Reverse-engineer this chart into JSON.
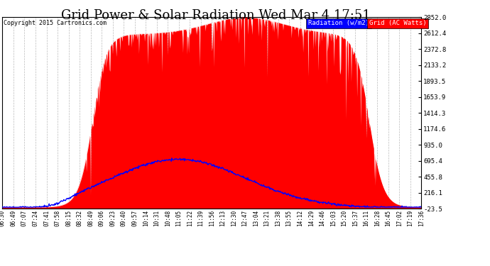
{
  "title": "Grid Power & Solar Radiation Wed Mar 4 17:51",
  "copyright": "Copyright 2015 Cartronics.com",
  "legend_radiation": "Radiation (w/m2)",
  "legend_grid": "Grid (AC Watts)",
  "yticks": [
    -23.5,
    216.1,
    455.8,
    695.4,
    935.0,
    1174.6,
    1414.3,
    1653.9,
    1893.5,
    2133.2,
    2372.8,
    2612.4,
    2852.0
  ],
  "ymin": -23.5,
  "ymax": 2852.0,
  "xtick_labels": [
    "06:30",
    "06:49",
    "07:07",
    "07:24",
    "07:41",
    "07:58",
    "08:15",
    "08:32",
    "08:49",
    "09:06",
    "09:23",
    "09:40",
    "09:57",
    "10:14",
    "10:31",
    "10:48",
    "11:05",
    "11:22",
    "11:39",
    "11:56",
    "12:13",
    "12:30",
    "12:47",
    "13:04",
    "13:21",
    "13:38",
    "13:55",
    "14:12",
    "14:29",
    "14:46",
    "15:03",
    "15:20",
    "15:37",
    "16:11",
    "16:28",
    "16:45",
    "17:02",
    "17:19",
    "17:36"
  ],
  "bg_color": "#ffffff",
  "grid_color": "#bbbbbb",
  "radiation_color": "#0000ff",
  "grid_ac_color": "#ff0000",
  "title_fontsize": 13,
  "label_fontsize": 6.5
}
